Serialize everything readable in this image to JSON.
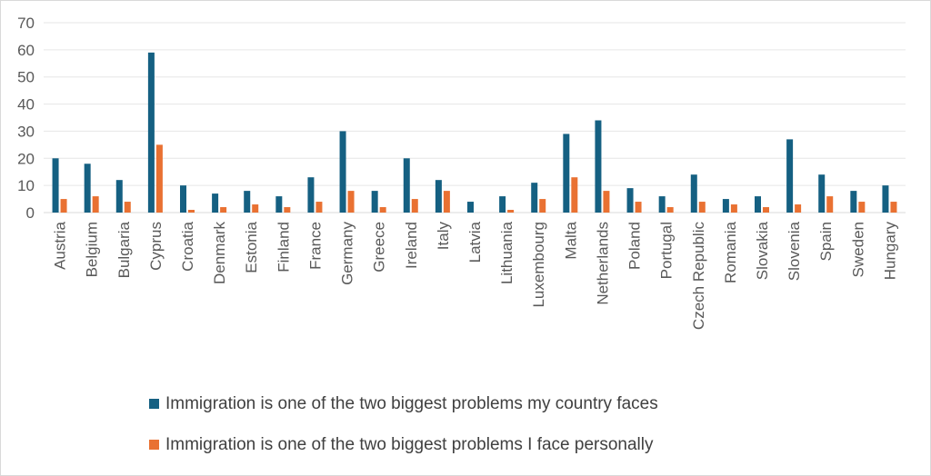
{
  "chart_data": {
    "type": "bar",
    "categories": [
      "Austria",
      "Belgium",
      "Bulgaria",
      "Cyprus",
      "Croatia",
      "Denmark",
      "Estonia",
      "Finland",
      "France",
      "Germany",
      "Greece",
      "Ireland",
      "Italy",
      "Latvia",
      "Lithuania",
      "Luxembourg",
      "Malta",
      "Netherlands",
      "Poland",
      "Portugal",
      "Czech Republic",
      "Romania",
      "Slovakia",
      "Slovenia",
      "Spain",
      "Sweden",
      "Hungary"
    ],
    "series": [
      {
        "name": "Immigration is one of the two biggest problems my country faces",
        "color": "#156082",
        "values": [
          20,
          18,
          12,
          59,
          10,
          7,
          8,
          6,
          13,
          30,
          8,
          20,
          12,
          4,
          6,
          11,
          29,
          34,
          9,
          6,
          14,
          5,
          6,
          27,
          14,
          8,
          10
        ]
      },
      {
        "name": "Immigration is one of the two biggest problems I face personally",
        "color": "#E97132",
        "values": [
          5,
          6,
          4,
          25,
          1,
          2,
          3,
          2,
          4,
          8,
          2,
          5,
          8,
          0,
          1,
          5,
          13,
          8,
          4,
          2,
          4,
          3,
          2,
          3,
          6,
          4,
          4
        ]
      }
    ],
    "yticks": [
      "0",
      "10",
      "20",
      "30",
      "40",
      "50",
      "60",
      "70"
    ],
    "ylim": [
      0,
      70
    ],
    "grid": true,
    "legend_position": "bottom"
  }
}
